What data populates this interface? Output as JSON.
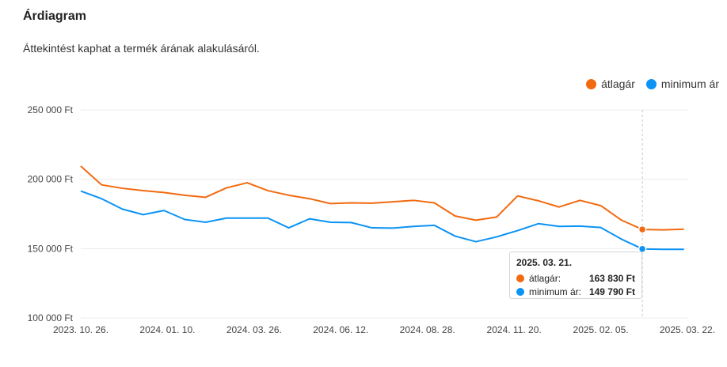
{
  "header": {
    "title": "Árdiagram",
    "subtitle": "Áttekintést kaphat a termék árának alakulásáról."
  },
  "chart_data": {
    "type": "line",
    "ylim": [
      100000,
      250000
    ],
    "yticks": [
      {
        "value": 100000,
        "label": "100 000 Ft"
      },
      {
        "value": 150000,
        "label": "150 000 Ft"
      },
      {
        "value": 200000,
        "label": "200 000 Ft"
      },
      {
        "value": 250000,
        "label": "250 000 Ft"
      }
    ],
    "x_tick_labels": [
      "2023. 10. 26.",
      "2024. 01. 10.",
      "2024. 03. 26.",
      "2024. 06. 12.",
      "2024. 08. 28.",
      "2024. 11. 20.",
      "2025. 02. 05.",
      "2025. 03. 22."
    ],
    "x_tick_index": [
      0,
      5,
      10,
      15,
      20,
      25,
      30,
      35
    ],
    "highlight_index": 34,
    "legend_position": "top-right",
    "grid": true,
    "series": [
      {
        "name": "átlagár",
        "color": "#f26a10",
        "values": [
          209500,
          196000,
          193500,
          191800,
          190500,
          188500,
          187000,
          193800,
          197500,
          191800,
          188500,
          186000,
          182500,
          183000,
          182800,
          183800,
          184800,
          183000,
          173500,
          170500,
          172800,
          188000,
          184500,
          180000,
          184800,
          181000,
          170500,
          163830,
          163500,
          164000
        ]
      },
      {
        "name": "minimum ár",
        "color": "#0b93f5",
        "values": [
          191500,
          186000,
          178500,
          174500,
          177500,
          171000,
          169000,
          172000,
          172000,
          172000,
          165000,
          171500,
          169000,
          168800,
          165000,
          164800,
          166000,
          166800,
          159000,
          155000,
          158500,
          163000,
          168000,
          166000,
          166200,
          165200,
          156800,
          149790,
          149500,
          149500
        ]
      }
    ],
    "point_x": [
      0,
      1.2,
      2.4,
      3.6,
      4.8,
      6.0,
      7.2,
      8.4,
      9.6,
      10.8,
      12.0,
      13.2,
      14.4,
      15.6,
      16.8,
      18.0,
      19.2,
      20.4,
      21.6,
      22.8,
      24.0,
      25.2,
      26.4,
      27.6,
      28.8,
      30.0,
      31.2,
      32.4,
      33.6,
      34.8
    ]
  },
  "tooltip": {
    "date": "2025. 03. 21.",
    "rows": [
      {
        "label": "átlagár:",
        "value": "163 830 Ft",
        "color": "#f26a10"
      },
      {
        "label": "minimum ár:",
        "value": "149 790 Ft",
        "color": "#0b93f5"
      }
    ]
  }
}
